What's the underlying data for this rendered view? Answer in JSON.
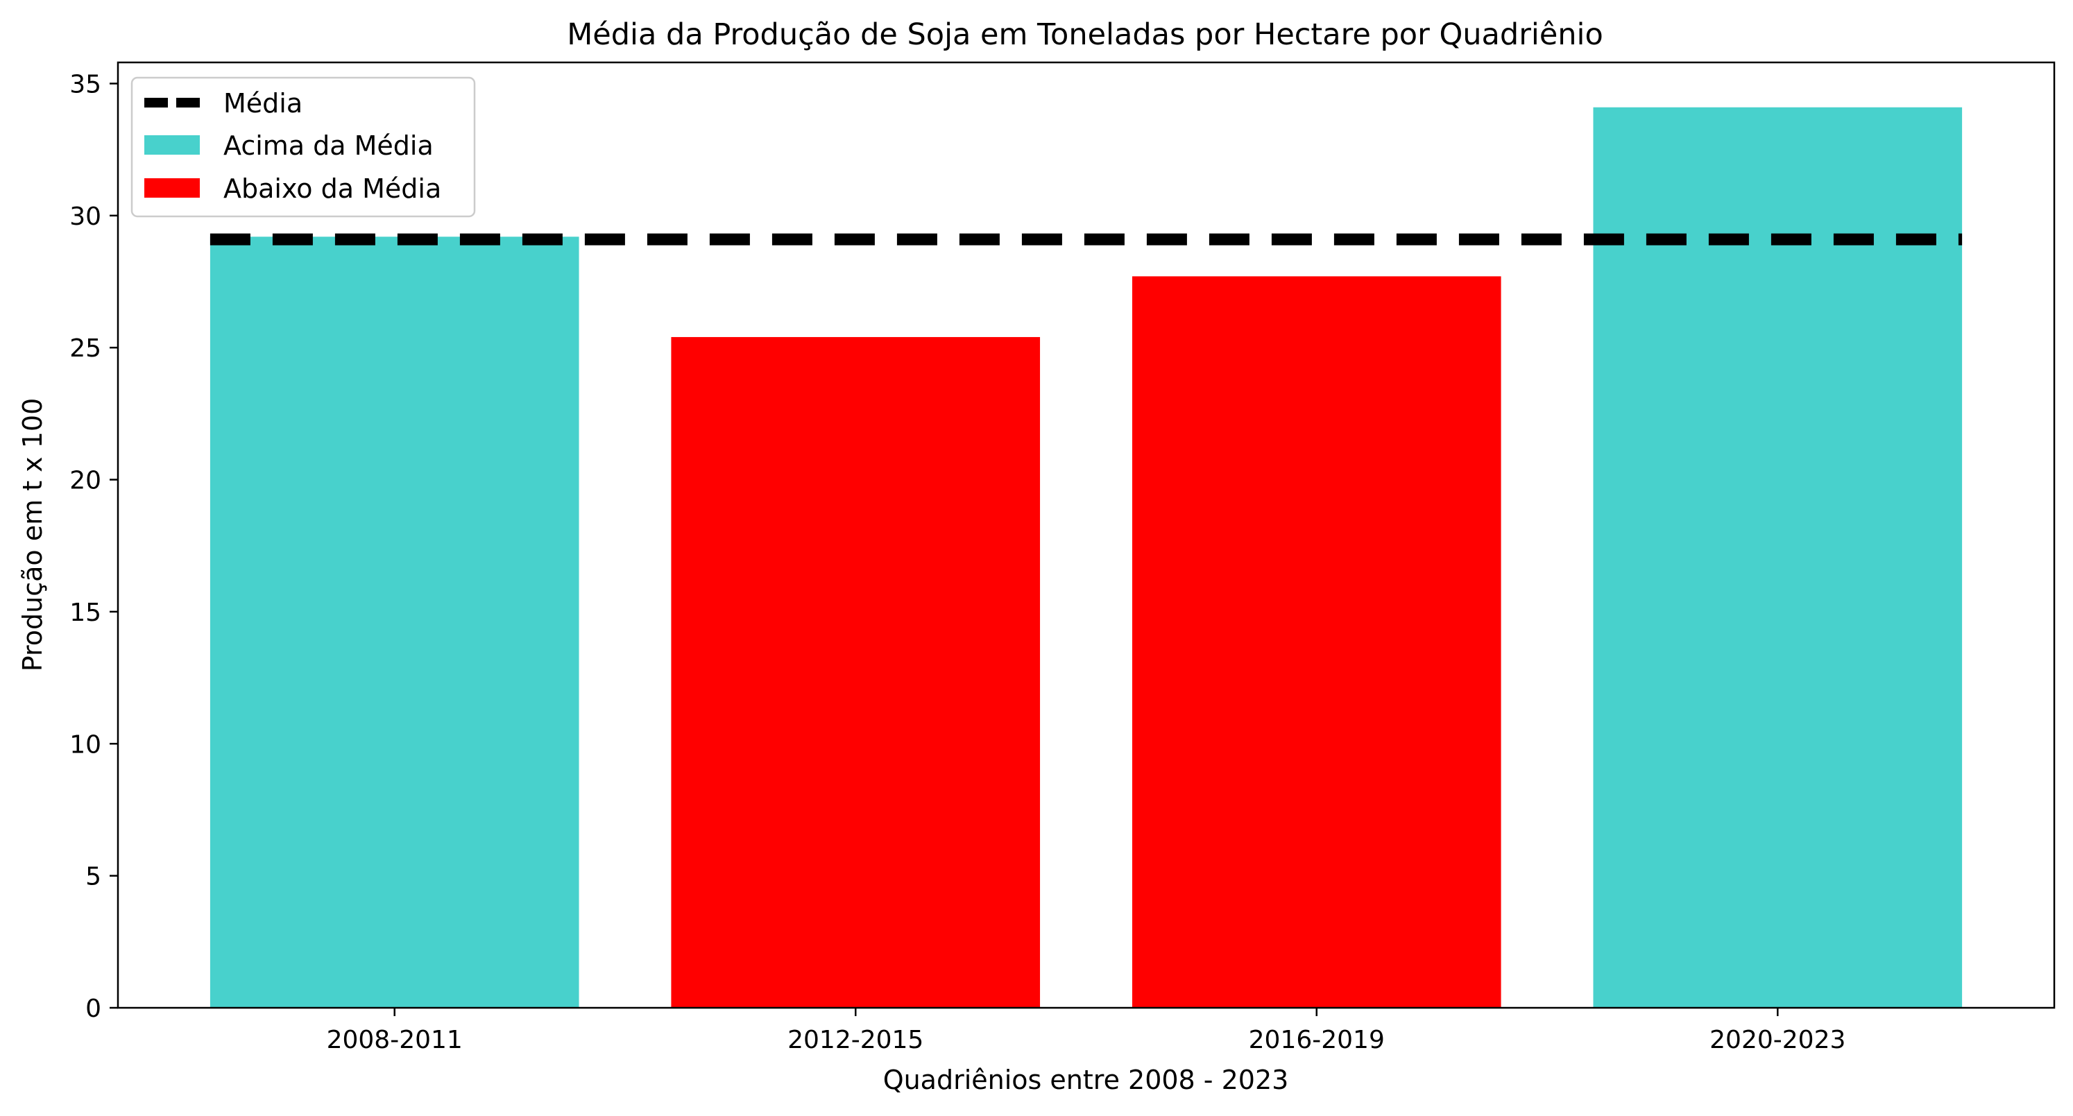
{
  "chart_data": {
    "type": "bar",
    "title": "Média da Produção de Soja em Toneladas por Hectare por Quadriênio",
    "xlabel": "Quadriênios entre 2008 - 2023",
    "ylabel": "Produção em t x 100",
    "categories": [
      "2008-2011",
      "2012-2015",
      "2016-2019",
      "2020-2023"
    ],
    "values": [
      29.2,
      25.4,
      27.7,
      34.1
    ],
    "mean": 29.1,
    "ylim": [
      0,
      35.8
    ],
    "yticks": [
      0,
      5,
      10,
      15,
      20,
      25,
      30,
      35
    ],
    "grid": false,
    "legend_position": "top-left",
    "legend": {
      "mean_label": "Média",
      "above_label": "Acima da Média",
      "below_label": "Abaixo da Média"
    },
    "colors": {
      "above": "#48d1cc",
      "below": "#ff0000",
      "mean_line": "#000000"
    }
  }
}
